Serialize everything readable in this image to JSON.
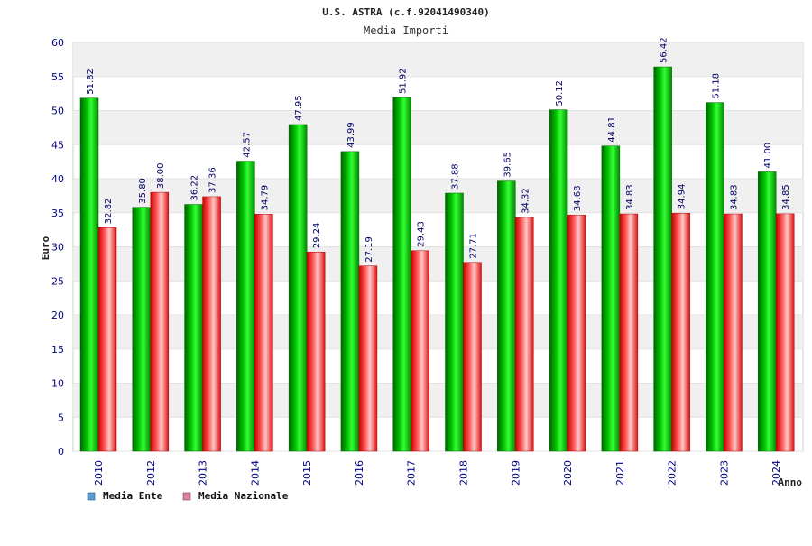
{
  "chart_data": {
    "type": "bar",
    "title": "U.S. ASTRA (c.f.92041490340)",
    "subtitle": "Media Importi",
    "xlabel": "Anno",
    "ylabel": "Euro",
    "ylim": [
      0,
      60
    ],
    "yticks": [
      0,
      5,
      10,
      15,
      20,
      25,
      30,
      35,
      40,
      45,
      50,
      55,
      60
    ],
    "grid": true,
    "legend_position": "bottom-left",
    "categories": [
      "2010",
      "2012",
      "2013",
      "2014",
      "2015",
      "2016",
      "2017",
      "2018",
      "2019",
      "2020",
      "2021",
      "2022",
      "2023",
      "2024"
    ],
    "series": [
      {
        "name": "Media Ente",
        "color": "#00b000",
        "legend_color": "#5b9bd5",
        "values": [
          51.82,
          35.8,
          36.22,
          42.57,
          47.95,
          43.99,
          51.92,
          37.88,
          39.65,
          50.12,
          44.81,
          56.42,
          51.18,
          41.0
        ],
        "labels": [
          "51.82",
          "35.80",
          "36.22",
          "42.57",
          "47.95",
          "43.99",
          "51.92",
          "37.88",
          "39.65",
          "50.12",
          "44.81",
          "56.42",
          "51.18",
          "41.00"
        ]
      },
      {
        "name": "Media Nazionale",
        "color": "#e8202a",
        "legend_color": "#e07fa0",
        "values": [
          32.82,
          38.0,
          37.36,
          34.79,
          29.24,
          27.19,
          29.43,
          27.71,
          34.32,
          34.68,
          34.83,
          34.94,
          34.83,
          34.85
        ],
        "labels": [
          "32.82",
          "38.00",
          "37.36",
          "34.79",
          "29.24",
          "27.19",
          "29.43",
          "27.71",
          "34.32",
          "34.68",
          "34.83",
          "34.94",
          "34.83",
          "34.85"
        ]
      }
    ]
  }
}
